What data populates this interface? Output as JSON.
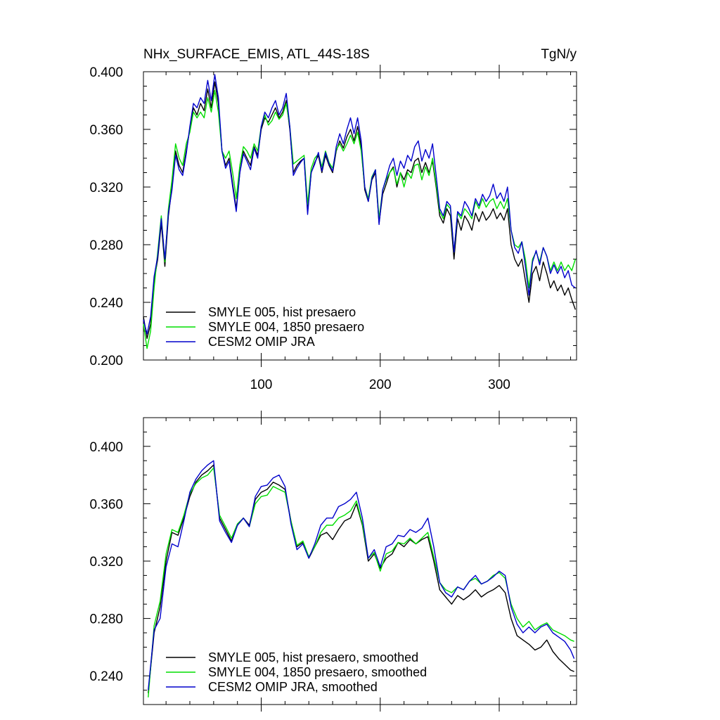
{
  "chart_data": [
    {
      "type": "line",
      "title": "NHx_SURFACE_EMIS, ATL_44S-18S",
      "units": "TgN/y",
      "xlim": [
        1,
        365
      ],
      "ylim": [
        0.2,
        0.4
      ],
      "x_ticks": [
        100,
        200,
        300
      ],
      "y_ticks": [
        "0.200",
        "0.240",
        "0.280",
        "0.320",
        "0.360",
        "0.400"
      ],
      "legend_position": "bottom-left",
      "x": [
        1,
        4,
        7,
        10,
        13,
        16,
        19,
        22,
        25,
        28,
        31,
        34,
        37,
        40,
        43,
        46,
        49,
        52,
        55,
        58,
        61,
        64,
        67,
        70,
        73,
        76,
        79,
        82,
        85,
        88,
        91,
        94,
        97,
        100,
        103,
        106,
        109,
        112,
        115,
        118,
        121,
        124,
        127,
        130,
        133,
        136,
        139,
        142,
        145,
        148,
        151,
        154,
        157,
        160,
        163,
        166,
        169,
        172,
        175,
        178,
        181,
        184,
        187,
        190,
        193,
        196,
        199,
        202,
        205,
        208,
        211,
        214,
        217,
        220,
        223,
        226,
        229,
        232,
        235,
        238,
        241,
        244,
        247,
        250,
        253,
        256,
        259,
        262,
        265,
        268,
        271,
        274,
        277,
        280,
        283,
        286,
        289,
        292,
        295,
        298,
        301,
        304,
        307,
        310,
        313,
        316,
        319,
        322,
        325,
        328,
        331,
        334,
        337,
        340,
        343,
        346,
        349,
        352,
        355,
        358,
        361,
        364
      ],
      "series": [
        {
          "name": "SMYLE 005, hist presaero",
          "color": "#000000",
          "values": [
            0.23,
            0.215,
            0.225,
            0.255,
            0.27,
            0.295,
            0.265,
            0.3,
            0.32,
            0.345,
            0.335,
            0.33,
            0.345,
            0.36,
            0.375,
            0.37,
            0.378,
            0.373,
            0.388,
            0.375,
            0.393,
            0.378,
            0.345,
            0.335,
            0.34,
            0.322,
            0.305,
            0.33,
            0.345,
            0.34,
            0.335,
            0.348,
            0.342,
            0.36,
            0.368,
            0.365,
            0.37,
            0.375,
            0.368,
            0.372,
            0.38,
            0.36,
            0.33,
            0.335,
            0.338,
            0.34,
            0.303,
            0.33,
            0.337,
            0.342,
            0.33,
            0.342,
            0.335,
            0.33,
            0.345,
            0.352,
            0.347,
            0.355,
            0.36,
            0.352,
            0.362,
            0.348,
            0.318,
            0.31,
            0.325,
            0.33,
            0.295,
            0.315,
            0.322,
            0.33,
            0.334,
            0.32,
            0.33,
            0.325,
            0.332,
            0.33,
            0.338,
            0.34,
            0.33,
            0.337,
            0.33,
            0.338,
            0.32,
            0.3,
            0.295,
            0.305,
            0.3,
            0.27,
            0.298,
            0.29,
            0.3,
            0.296,
            0.29,
            0.302,
            0.296,
            0.303,
            0.297,
            0.3,
            0.305,
            0.298,
            0.302,
            0.297,
            0.305,
            0.28,
            0.27,
            0.265,
            0.27,
            0.255,
            0.24,
            0.26,
            0.265,
            0.255,
            0.268,
            0.26,
            0.25,
            0.255,
            0.248,
            0.252,
            0.245,
            0.25,
            0.242,
            0.235
          ]
        },
        {
          "name": "SMYLE 004, 1850 presaero",
          "color": "#00dd00",
          "values": [
            0.225,
            0.208,
            0.22,
            0.25,
            0.275,
            0.3,
            0.268,
            0.305,
            0.325,
            0.35,
            0.34,
            0.335,
            0.35,
            0.358,
            0.372,
            0.368,
            0.372,
            0.368,
            0.382,
            0.372,
            0.387,
            0.372,
            0.345,
            0.34,
            0.345,
            0.33,
            0.312,
            0.335,
            0.348,
            0.345,
            0.34,
            0.35,
            0.345,
            0.362,
            0.37,
            0.363,
            0.366,
            0.372,
            0.367,
            0.37,
            0.378,
            0.362,
            0.336,
            0.338,
            0.34,
            0.342,
            0.308,
            0.333,
            0.34,
            0.343,
            0.334,
            0.345,
            0.337,
            0.333,
            0.346,
            0.35,
            0.345,
            0.35,
            0.356,
            0.35,
            0.358,
            0.345,
            0.32,
            0.312,
            0.327,
            0.332,
            0.298,
            0.318,
            0.325,
            0.33,
            0.333,
            0.322,
            0.33,
            0.32,
            0.33,
            0.326,
            0.335,
            0.336,
            0.325,
            0.334,
            0.328,
            0.34,
            0.322,
            0.303,
            0.298,
            0.308,
            0.305,
            0.275,
            0.302,
            0.298,
            0.305,
            0.302,
            0.298,
            0.31,
            0.305,
            0.312,
            0.306,
            0.31,
            0.312,
            0.305,
            0.31,
            0.305,
            0.312,
            0.29,
            0.28,
            0.278,
            0.282,
            0.27,
            0.25,
            0.27,
            0.275,
            0.268,
            0.278,
            0.272,
            0.262,
            0.268,
            0.262,
            0.268,
            0.262,
            0.266,
            0.262,
            0.27
          ]
        },
        {
          "name": "CESM2 OMIP JRA",
          "color": "#0000cc",
          "values": [
            0.228,
            0.218,
            0.23,
            0.258,
            0.272,
            0.298,
            0.27,
            0.302,
            0.318,
            0.342,
            0.332,
            0.328,
            0.343,
            0.362,
            0.378,
            0.375,
            0.382,
            0.378,
            0.394,
            0.38,
            0.398,
            0.382,
            0.345,
            0.333,
            0.338,
            0.32,
            0.303,
            0.33,
            0.343,
            0.338,
            0.332,
            0.347,
            0.34,
            0.362,
            0.372,
            0.368,
            0.375,
            0.38,
            0.37,
            0.375,
            0.385,
            0.362,
            0.328,
            0.333,
            0.337,
            0.34,
            0.301,
            0.33,
            0.336,
            0.344,
            0.331,
            0.344,
            0.336,
            0.331,
            0.348,
            0.357,
            0.35,
            0.36,
            0.368,
            0.357,
            0.368,
            0.352,
            0.32,
            0.31,
            0.326,
            0.332,
            0.294,
            0.318,
            0.326,
            0.335,
            0.34,
            0.328,
            0.338,
            0.333,
            0.342,
            0.338,
            0.348,
            0.352,
            0.338,
            0.346,
            0.34,
            0.35,
            0.328,
            0.305,
            0.3,
            0.31,
            0.307,
            0.275,
            0.303,
            0.3,
            0.31,
            0.306,
            0.3,
            0.312,
            0.307,
            0.315,
            0.31,
            0.314,
            0.322,
            0.312,
            0.316,
            0.31,
            0.32,
            0.29,
            0.278,
            0.274,
            0.282,
            0.265,
            0.245,
            0.268,
            0.276,
            0.266,
            0.278,
            0.272,
            0.26,
            0.266,
            0.26,
            0.265,
            0.257,
            0.262,
            0.252,
            0.25
          ]
        }
      ]
    },
    {
      "type": "line",
      "xlim": [
        1,
        365
      ],
      "ylim": [
        0.22,
        0.42
      ],
      "y_ticks": [
        "0.240",
        "0.280",
        "0.320",
        "0.360",
        "0.400"
      ],
      "legend_position": "bottom-left",
      "x": [
        5,
        10,
        15,
        20,
        25,
        30,
        35,
        40,
        45,
        50,
        55,
        60,
        65,
        70,
        75,
        80,
        85,
        90,
        95,
        100,
        105,
        110,
        115,
        120,
        125,
        130,
        135,
        140,
        145,
        150,
        155,
        160,
        165,
        170,
        175,
        180,
        185,
        190,
        195,
        200,
        205,
        210,
        215,
        220,
        225,
        230,
        235,
        240,
        245,
        250,
        255,
        260,
        265,
        270,
        275,
        280,
        285,
        290,
        295,
        300,
        305,
        310,
        315,
        320,
        325,
        330,
        335,
        340,
        345,
        350,
        355,
        360,
        363
      ],
      "series": [
        {
          "name": "SMYLE 005, hist presaero, smoothed",
          "color": "#000000",
          "values": [
            0.228,
            0.27,
            0.288,
            0.32,
            0.34,
            0.338,
            0.35,
            0.365,
            0.375,
            0.38,
            0.383,
            0.387,
            0.35,
            0.342,
            0.334,
            0.345,
            0.35,
            0.345,
            0.363,
            0.368,
            0.37,
            0.375,
            0.373,
            0.37,
            0.348,
            0.33,
            0.333,
            0.322,
            0.33,
            0.338,
            0.34,
            0.335,
            0.342,
            0.348,
            0.35,
            0.36,
            0.345,
            0.32,
            0.325,
            0.315,
            0.322,
            0.325,
            0.333,
            0.33,
            0.335,
            0.332,
            0.335,
            0.337,
            0.32,
            0.3,
            0.295,
            0.29,
            0.296,
            0.293,
            0.296,
            0.3,
            0.295,
            0.298,
            0.3,
            0.303,
            0.298,
            0.28,
            0.268,
            0.265,
            0.262,
            0.258,
            0.26,
            0.265,
            0.257,
            0.252,
            0.248,
            0.244,
            0.243
          ]
        },
        {
          "name": "SMYLE 004, 1850 presaero, smoothed",
          "color": "#00dd00",
          "values": [
            0.225,
            0.275,
            0.292,
            0.325,
            0.342,
            0.34,
            0.352,
            0.367,
            0.374,
            0.378,
            0.38,
            0.385,
            0.352,
            0.344,
            0.336,
            0.346,
            0.35,
            0.344,
            0.36,
            0.365,
            0.366,
            0.372,
            0.37,
            0.368,
            0.348,
            0.331,
            0.334,
            0.323,
            0.33,
            0.34,
            0.345,
            0.345,
            0.35,
            0.352,
            0.355,
            0.362,
            0.346,
            0.322,
            0.326,
            0.313,
            0.325,
            0.327,
            0.333,
            0.332,
            0.336,
            0.332,
            0.336,
            0.34,
            0.323,
            0.305,
            0.3,
            0.298,
            0.302,
            0.3,
            0.306,
            0.308,
            0.304,
            0.306,
            0.31,
            0.312,
            0.308,
            0.29,
            0.28,
            0.274,
            0.278,
            0.272,
            0.275,
            0.277,
            0.272,
            0.27,
            0.268,
            0.265,
            0.264
          ]
        },
        {
          "name": "CESM2 OMIP JRA, smoothed",
          "color": "#0000cc",
          "values": [
            0.23,
            0.272,
            0.28,
            0.316,
            0.332,
            0.33,
            0.348,
            0.368,
            0.377,
            0.383,
            0.387,
            0.39,
            0.348,
            0.34,
            0.333,
            0.345,
            0.35,
            0.344,
            0.365,
            0.372,
            0.373,
            0.378,
            0.38,
            0.372,
            0.346,
            0.328,
            0.332,
            0.322,
            0.332,
            0.345,
            0.35,
            0.35,
            0.358,
            0.36,
            0.363,
            0.368,
            0.35,
            0.322,
            0.328,
            0.316,
            0.33,
            0.332,
            0.338,
            0.337,
            0.342,
            0.34,
            0.343,
            0.35,
            0.33,
            0.305,
            0.298,
            0.295,
            0.302,
            0.3,
            0.306,
            0.31,
            0.304,
            0.306,
            0.309,
            0.313,
            0.31,
            0.288,
            0.276,
            0.27,
            0.274,
            0.27,
            0.274,
            0.276,
            0.27,
            0.267,
            0.264,
            0.258,
            0.252
          ]
        }
      ]
    }
  ]
}
